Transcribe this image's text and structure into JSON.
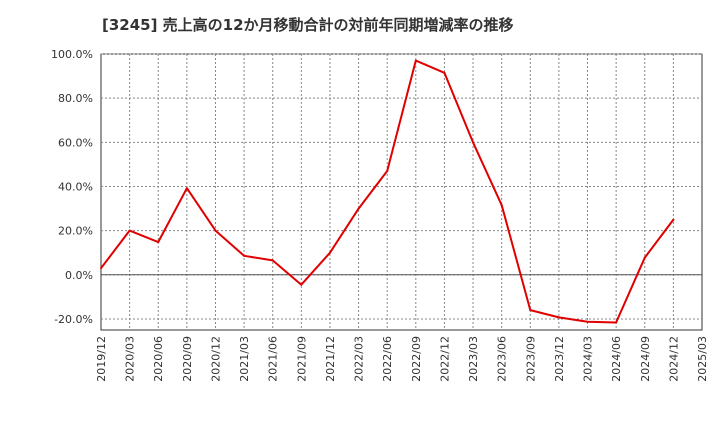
{
  "chart_data": {
    "type": "line",
    "title": "[3245]  売上高の12か月移動合計の対前年同期増減率の推移",
    "xlabel": "",
    "ylabel": "",
    "ylim": [
      -25,
      100
    ],
    "y_ticks": [
      100,
      80,
      60,
      40,
      20,
      0,
      -20
    ],
    "y_tick_labels": [
      "100.0%",
      "80.0%",
      "60.0%",
      "40.0%",
      "20.0%",
      "0.0%",
      "-20.0%"
    ],
    "x_tick_labels": [
      "2019/12",
      "2020/03",
      "2020/06",
      "2020/09",
      "2020/12",
      "2021/03",
      "2021/06",
      "2021/09",
      "2021/12",
      "2022/03",
      "2022/06",
      "2022/09",
      "2022/12",
      "2023/03",
      "2023/06",
      "2023/09",
      "2023/12",
      "2024/03",
      "2024/06",
      "2024/09",
      "2024/12",
      "2025/03"
    ],
    "grid": true,
    "series": [
      {
        "name": "売上高の12か月移動合計の対前年同期増減率",
        "color": "#e00000",
        "values": [
          3.0,
          20.0,
          14.8,
          39.2,
          20.0,
          8.6,
          6.5,
          -4.5,
          10.0,
          30.0,
          47.0,
          97.0,
          91.5,
          60.0,
          31.5,
          -16.0,
          -19.3,
          -21.3,
          -21.6,
          7.8,
          25.0
        ]
      }
    ]
  }
}
